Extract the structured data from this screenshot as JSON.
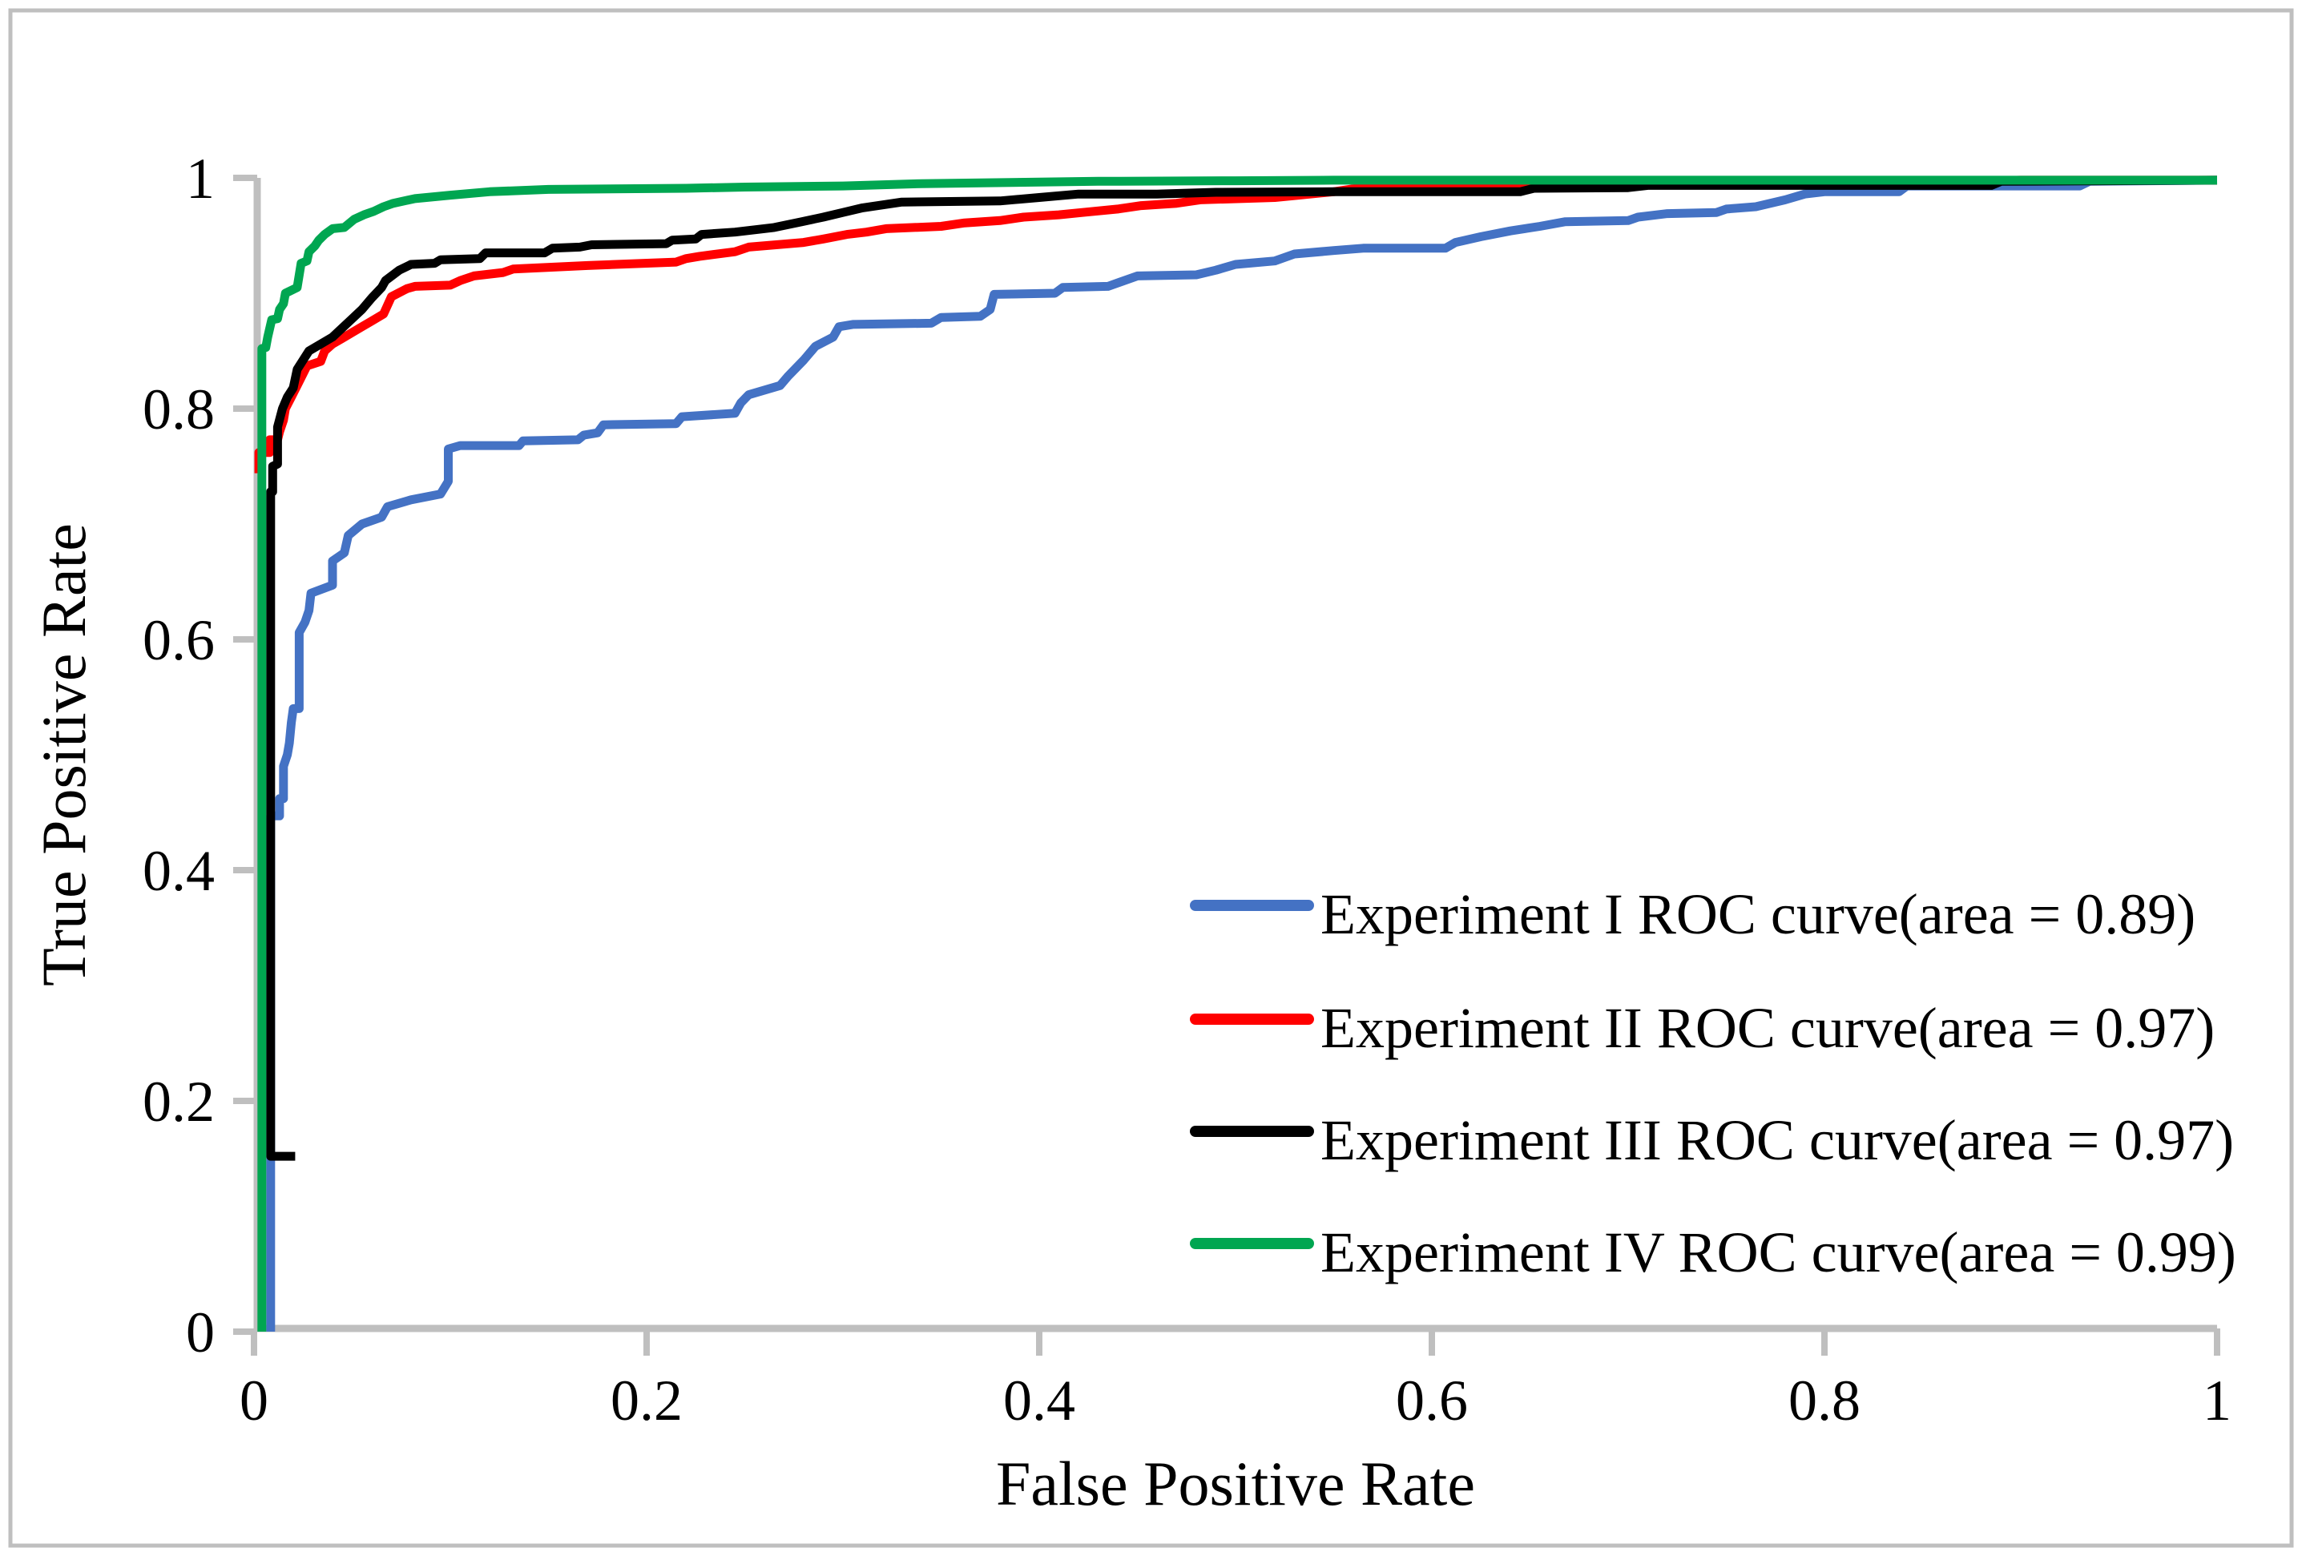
{
  "chart_data": {
    "type": "line",
    "subtype": "roc-curves",
    "title": "",
    "xlabel": "False Positive Rate",
    "ylabel": "True Positive Rate",
    "xlim": [
      0,
      1
    ],
    "ylim": [
      0,
      1
    ],
    "grid": false,
    "legend_position": "inside lower right",
    "axis_color": "#BFBFBF",
    "border_color": "#BFBFBF",
    "background_color": "#FFFFFF",
    "x_ticks": [
      "0",
      "0.2",
      "0.4",
      "0.6",
      "0.8",
      "1"
    ],
    "y_ticks": [
      "0",
      "0.2",
      "0.4",
      "0.6",
      "0.8",
      "1"
    ],
    "series": [
      {
        "name": "Experiment I ROC curve",
        "legend_label": "Experiment I ROC curve(area = 0.89)",
        "area": 0.89,
        "color": "#4472C4",
        "points": [
          [
            0.0085,
            0
          ],
          [
            0.0085,
            0.447
          ],
          [
            0.013,
            0.447
          ],
          [
            0.013,
            0.462
          ],
          [
            0.015,
            0.462
          ],
          [
            0.015,
            0.49
          ],
          [
            0.017,
            0.5
          ],
          [
            0.018,
            0.51
          ],
          [
            0.019,
            0.528
          ],
          [
            0.02,
            0.54
          ],
          [
            0.023,
            0.54
          ],
          [
            0.023,
            0.606
          ],
          [
            0.026,
            0.615
          ],
          [
            0.028,
            0.625
          ],
          [
            0.029,
            0.64
          ],
          [
            0.04,
            0.647
          ],
          [
            0.04,
            0.668
          ],
          [
            0.046,
            0.675
          ],
          [
            0.048,
            0.69
          ],
          [
            0.055,
            0.7
          ],
          [
            0.065,
            0.706
          ],
          [
            0.068,
            0.715
          ],
          [
            0.08,
            0.721
          ],
          [
            0.095,
            0.726
          ],
          [
            0.099,
            0.737
          ],
          [
            0.099,
            0.765
          ],
          [
            0.105,
            0.768
          ],
          [
            0.135,
            0.768
          ],
          [
            0.137,
            0.772
          ],
          [
            0.165,
            0.773
          ],
          [
            0.168,
            0.777
          ],
          [
            0.175,
            0.779
          ],
          [
            0.178,
            0.786
          ],
          [
            0.215,
            0.787
          ],
          [
            0.218,
            0.793
          ],
          [
            0.245,
            0.796
          ],
          [
            0.248,
            0.805
          ],
          [
            0.252,
            0.812
          ],
          [
            0.268,
            0.82
          ],
          [
            0.272,
            0.828
          ],
          [
            0.28,
            0.842
          ],
          [
            0.286,
            0.854
          ],
          [
            0.295,
            0.862
          ],
          [
            0.298,
            0.871
          ],
          [
            0.305,
            0.873
          ],
          [
            0.345,
            0.874
          ],
          [
            0.35,
            0.879
          ],
          [
            0.37,
            0.88
          ],
          [
            0.375,
            0.886
          ],
          [
            0.377,
            0.899
          ],
          [
            0.408,
            0.9
          ],
          [
            0.412,
            0.905
          ],
          [
            0.435,
            0.906
          ],
          [
            0.45,
            0.915
          ],
          [
            0.48,
            0.916
          ],
          [
            0.49,
            0.92
          ],
          [
            0.5,
            0.925
          ],
          [
            0.52,
            0.928
          ],
          [
            0.53,
            0.934
          ],
          [
            0.55,
            0.937
          ],
          [
            0.565,
            0.939
          ],
          [
            0.607,
            0.939
          ],
          [
            0.612,
            0.944
          ],
          [
            0.625,
            0.949
          ],
          [
            0.64,
            0.954
          ],
          [
            0.655,
            0.958
          ],
          [
            0.668,
            0.962
          ],
          [
            0.7,
            0.963
          ],
          [
            0.705,
            0.966
          ],
          [
            0.72,
            0.969
          ],
          [
            0.745,
            0.97
          ],
          [
            0.75,
            0.973
          ],
          [
            0.765,
            0.975
          ],
          [
            0.78,
            0.981
          ],
          [
            0.79,
            0.986
          ],
          [
            0.8,
            0.988
          ],
          [
            0.838,
            0.988
          ],
          [
            0.842,
            0.993
          ],
          [
            0.93,
            0.993
          ],
          [
            0.935,
            0.997
          ],
          [
            1,
            0.998
          ]
        ]
      },
      {
        "name": "Experiment II ROC curve",
        "legend_label": "Experiment II ROC curve(area = 0.97)",
        "area": 0.97,
        "color": "#FF0000",
        "points": [
          [
            0.0025,
            0.744
          ],
          [
            0.0025,
            0.762
          ],
          [
            0.008,
            0.762
          ],
          [
            0.008,
            0.773
          ],
          [
            0.012,
            0.773
          ],
          [
            0.013,
            0.78
          ],
          [
            0.015,
            0.79
          ],
          [
            0.016,
            0.8
          ],
          [
            0.019,
            0.81
          ],
          [
            0.022,
            0.82
          ],
          [
            0.027,
            0.837
          ],
          [
            0.034,
            0.841
          ],
          [
            0.036,
            0.85
          ],
          [
            0.04,
            0.856
          ],
          [
            0.045,
            0.861
          ],
          [
            0.05,
            0.866
          ],
          [
            0.055,
            0.871
          ],
          [
            0.06,
            0.876
          ],
          [
            0.066,
            0.882
          ],
          [
            0.07,
            0.897
          ],
          [
            0.078,
            0.904
          ],
          [
            0.082,
            0.906
          ],
          [
            0.1,
            0.907
          ],
          [
            0.105,
            0.911
          ],
          [
            0.112,
            0.915
          ],
          [
            0.127,
            0.918
          ],
          [
            0.132,
            0.921
          ],
          [
            0.17,
            0.924
          ],
          [
            0.215,
            0.927
          ],
          [
            0.22,
            0.93
          ],
          [
            0.227,
            0.932
          ],
          [
            0.245,
            0.936
          ],
          [
            0.252,
            0.94
          ],
          [
            0.28,
            0.944
          ],
          [
            0.29,
            0.947
          ],
          [
            0.302,
            0.951
          ],
          [
            0.312,
            0.953
          ],
          [
            0.322,
            0.956
          ],
          [
            0.35,
            0.958
          ],
          [
            0.362,
            0.961
          ],
          [
            0.38,
            0.963
          ],
          [
            0.392,
            0.966
          ],
          [
            0.41,
            0.968
          ],
          [
            0.422,
            0.97
          ],
          [
            0.44,
            0.973
          ],
          [
            0.452,
            0.976
          ],
          [
            0.47,
            0.978
          ],
          [
            0.482,
            0.981
          ],
          [
            0.52,
            0.983
          ],
          [
            0.532,
            0.985
          ],
          [
            0.55,
            0.988
          ],
          [
            0.562,
            0.991
          ],
          [
            0.625,
            0.992
          ],
          [
            0.632,
            0.9935
          ],
          [
            0.7,
            0.9935
          ],
          [
            0.75,
            0.995
          ],
          [
            0.85,
            0.996
          ],
          [
            0.9,
            0.998
          ],
          [
            1,
            0.998
          ]
        ]
      },
      {
        "name": "Experiment III ROC curve",
        "legend_label": "Experiment III ROC curve(area = 0.97)",
        "area": 0.97,
        "color": "#000000",
        "points": [
          [
            0.021,
            0.152
          ],
          [
            0.0085,
            0.152
          ],
          [
            0.0085,
            0.728
          ],
          [
            0.0095,
            0.728
          ],
          [
            0.0095,
            0.75
          ],
          [
            0.012,
            0.752
          ],
          [
            0.012,
            0.784
          ],
          [
            0.0145,
            0.8
          ],
          [
            0.017,
            0.81
          ],
          [
            0.02,
            0.818
          ],
          [
            0.022,
            0.834
          ],
          [
            0.028,
            0.85
          ],
          [
            0.034,
            0.856
          ],
          [
            0.04,
            0.862
          ],
          [
            0.045,
            0.87
          ],
          [
            0.05,
            0.878
          ],
          [
            0.055,
            0.886
          ],
          [
            0.06,
            0.896
          ],
          [
            0.065,
            0.905
          ],
          [
            0.067,
            0.911
          ],
          [
            0.074,
            0.92
          ],
          [
            0.08,
            0.925
          ],
          [
            0.092,
            0.926
          ],
          [
            0.095,
            0.929
          ],
          [
            0.115,
            0.93
          ],
          [
            0.118,
            0.935
          ],
          [
            0.148,
            0.935
          ],
          [
            0.152,
            0.939
          ],
          [
            0.166,
            0.94
          ],
          [
            0.172,
            0.942
          ],
          [
            0.21,
            0.943
          ],
          [
            0.213,
            0.946
          ],
          [
            0.225,
            0.947
          ],
          [
            0.228,
            0.951
          ],
          [
            0.245,
            0.953
          ],
          [
            0.265,
            0.957
          ],
          [
            0.279,
            0.962
          ],
          [
            0.29,
            0.966
          ],
          [
            0.3,
            0.97
          ],
          [
            0.31,
            0.974
          ],
          [
            0.33,
            0.979
          ],
          [
            0.38,
            0.98
          ],
          [
            0.4,
            0.983
          ],
          [
            0.42,
            0.986
          ],
          [
            0.46,
            0.986
          ],
          [
            0.49,
            0.9875
          ],
          [
            0.55,
            0.988
          ],
          [
            0.645,
            0.988
          ],
          [
            0.652,
            0.991
          ],
          [
            0.7,
            0.9915
          ],
          [
            0.71,
            0.9935
          ],
          [
            0.885,
            0.9935
          ],
          [
            0.89,
            0.997
          ],
          [
            1,
            0.998
          ]
        ]
      },
      {
        "name": "Experiment IV ROC curve",
        "legend_label": "Experiment IV ROC curve(area = 0.99)",
        "area": 0.99,
        "color": "#00A651",
        "points": [
          [
            0.004,
            0
          ],
          [
            0.004,
            0.852
          ],
          [
            0.006,
            0.853
          ],
          [
            0.007,
            0.862
          ],
          [
            0.009,
            0.877
          ],
          [
            0.012,
            0.878
          ],
          [
            0.013,
            0.886
          ],
          [
            0.015,
            0.891
          ],
          [
            0.016,
            0.9
          ],
          [
            0.022,
            0.905
          ],
          [
            0.024,
            0.926
          ],
          [
            0.027,
            0.928
          ],
          [
            0.028,
            0.936
          ],
          [
            0.031,
            0.941
          ],
          [
            0.033,
            0.946
          ],
          [
            0.036,
            0.951
          ],
          [
            0.04,
            0.956
          ],
          [
            0.046,
            0.957
          ],
          [
            0.051,
            0.964
          ],
          [
            0.056,
            0.968
          ],
          [
            0.061,
            0.971
          ],
          [
            0.066,
            0.975
          ],
          [
            0.071,
            0.978
          ],
          [
            0.082,
            0.982
          ],
          [
            0.1,
            0.985
          ],
          [
            0.12,
            0.988
          ],
          [
            0.15,
            0.99
          ],
          [
            0.22,
            0.991
          ],
          [
            0.25,
            0.992
          ],
          [
            0.3,
            0.993
          ],
          [
            0.34,
            0.995
          ],
          [
            0.43,
            0.997
          ],
          [
            0.5,
            0.9975
          ],
          [
            0.55,
            0.998
          ],
          [
            1,
            0.998
          ]
        ]
      }
    ]
  }
}
